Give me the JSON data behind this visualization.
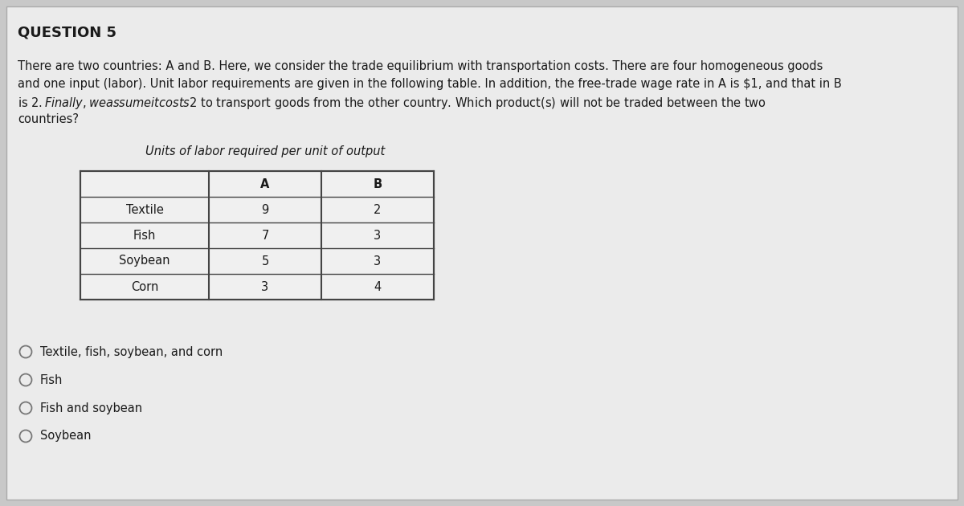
{
  "title": "QUESTION 5",
  "para_lines": [
    "There are two countries: A and B. Here, we consider the trade equilibrium with transportation costs. There are four homogeneous goods",
    "and one input (labor). Unit labor requirements are given in the following table. In addition, the free-trade wage rate in A is $1, and that in B",
    "is $2. Finally, we assume it costs $2 to transport goods from the other country. Which product(s) will not be traded between the two",
    "countries?"
  ],
  "table_title": "Units of labor required per unit of output",
  "table_headers": [
    "",
    "A",
    "B"
  ],
  "table_rows": [
    [
      "Textile",
      "9",
      "2"
    ],
    [
      "Fish",
      "7",
      "3"
    ],
    [
      "Soybean",
      "5",
      "3"
    ],
    [
      "Corn",
      "3",
      "4"
    ]
  ],
  "options": [
    "Textile, fish, soybean, and corn",
    "Fish",
    "Fish and soybean",
    "Soybean"
  ],
  "bg_color": "#c8c8c8",
  "content_bg": "#ebebeb",
  "table_bg": "#f0f0f0",
  "text_color": "#1a1a1a",
  "title_fontsize": 13,
  "para_fontsize": 10.5,
  "table_fontsize": 10.5,
  "option_fontsize": 10.5
}
